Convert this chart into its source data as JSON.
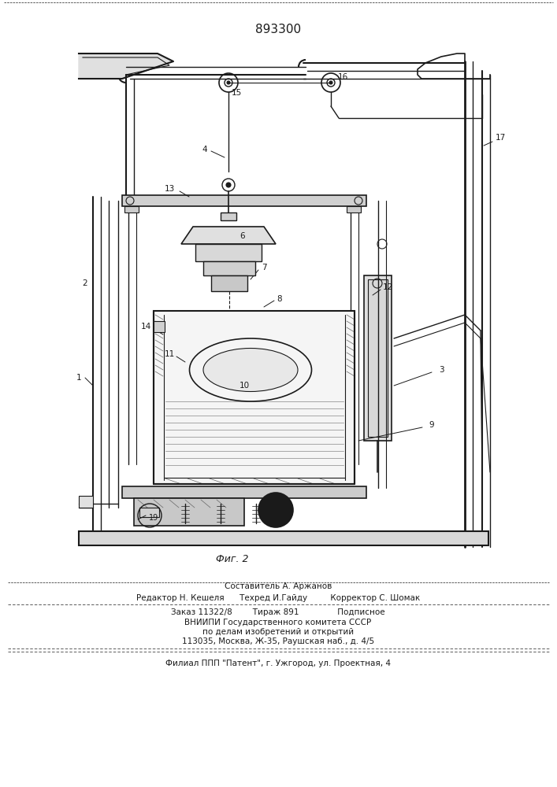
{
  "patent_number": "893300",
  "fig_label": "Фиг. 2",
  "bg_color": "#ffffff",
  "line_color": "#1a1a1a",
  "text_color": "#1a1a1a",
  "editor_line1": "Составитель А. Аржанов",
  "editor_line2": "Редактор Н. Кешеля      Техред И.Гайду         Корректор С. Шомак",
  "order_line": "Заказ 11322/8        Тираж 891               Подписное",
  "vniip1": "ВНИИПИ Государственного комитета СССР",
  "vniip2": "по делам изобретений и открытий",
  "vniip3": "113035, Москва, Ж-35, Раушская наб., д. 4/5",
  "filial": "Филиал ППП \"Патент\", г. Ужгород, ул. Проектная, 4"
}
